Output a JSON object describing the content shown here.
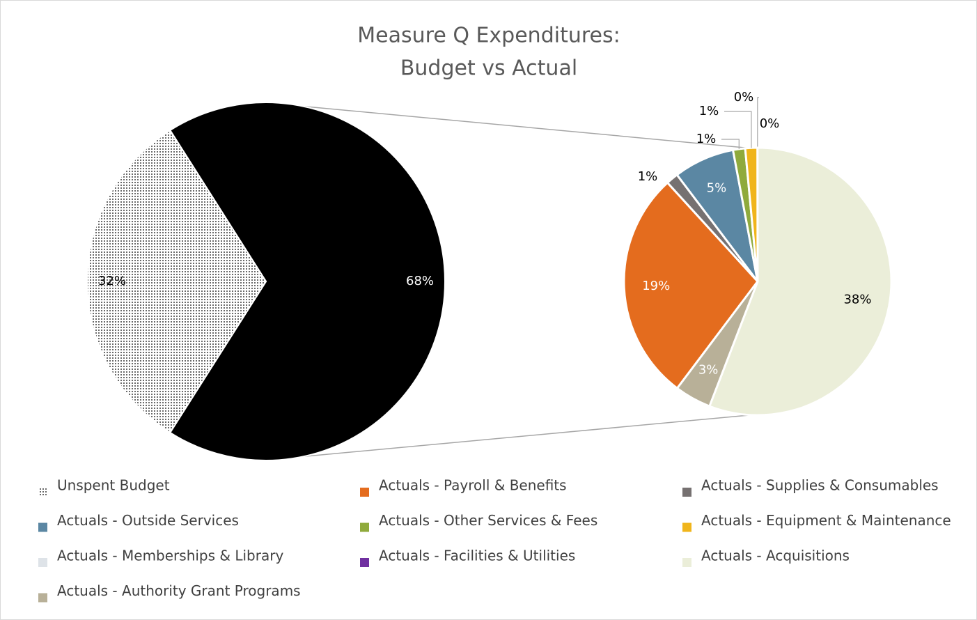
{
  "chart_data": {
    "type": "pie-of-pie",
    "title": [
      "Measure Q Expenditures:",
      "Budget vs Actual"
    ],
    "categories": [
      "Unspent Budget",
      "Actuals - Payroll & Benefits",
      "Actuals - Supplies & Consumables",
      "Actuals - Outside Services",
      "Actuals - Other Services & Fees",
      "Actuals - Equipment & Maintenance",
      "Actuals - Memberships & Library",
      "Actuals - Facilities & Utilities",
      "Actuals - Acquisitions",
      "Actuals - Authority Grant Programs"
    ],
    "values": [
      32,
      19,
      1,
      5,
      1,
      1,
      0,
      0,
      38,
      3
    ],
    "value_labels": [
      "32%",
      "19%",
      "1%",
      "5%",
      "1%",
      "1%",
      "0%",
      "0%",
      "38%",
      "3%"
    ],
    "colors": [
      "dots",
      "#E46C1E",
      "#767171",
      "#5B87A3",
      "#8FAA3C",
      "#F0B51B",
      "#DEE3E8",
      "#7030A0",
      "#EBEED9",
      "#B8B098"
    ],
    "pie": [
      "primary",
      "secondary",
      "secondary",
      "secondary",
      "secondary",
      "secondary",
      "secondary",
      "secondary",
      "secondary",
      "secondary"
    ],
    "other_value": 68,
    "other_label": "68%",
    "other_color": "#000000",
    "legend": "bottom"
  }
}
